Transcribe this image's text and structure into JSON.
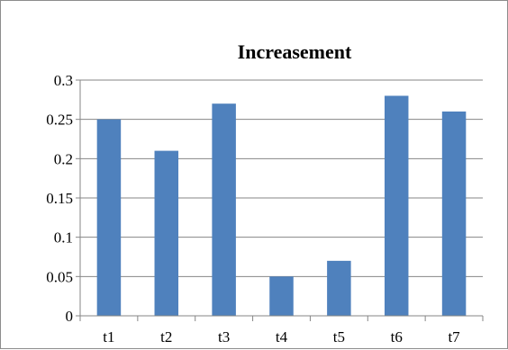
{
  "chart_data": {
    "type": "bar",
    "title": "Increasement",
    "categories": [
      "t1",
      "t2",
      "t3",
      "t4",
      "t5",
      "t6",
      "t7"
    ],
    "values": [
      0.25,
      0.21,
      0.27,
      0.05,
      0.07,
      0.28,
      0.26
    ],
    "ylim": [
      0,
      0.3
    ],
    "yticks": [
      "0",
      "0.05",
      "0.1",
      "0.15",
      "0.2",
      "0.25",
      "0.3"
    ],
    "grid": true,
    "legend": "none",
    "bar_color": "#4f81bd",
    "grid_color": "#868686"
  }
}
